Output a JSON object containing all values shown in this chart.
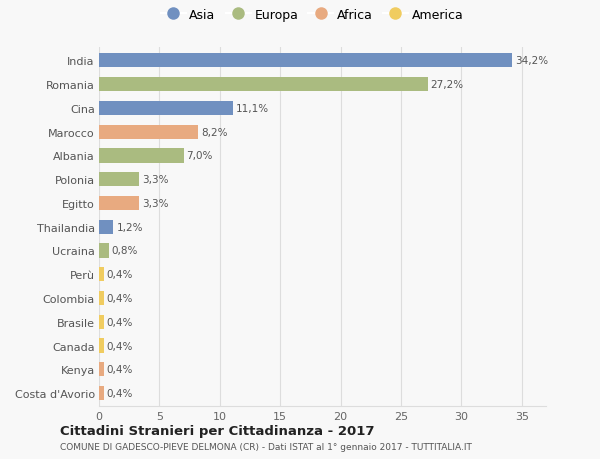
{
  "countries": [
    "India",
    "Romania",
    "Cina",
    "Marocco",
    "Albania",
    "Polonia",
    "Egitto",
    "Thailandia",
    "Ucraina",
    "Perù",
    "Colombia",
    "Brasile",
    "Canada",
    "Kenya",
    "Costa d'Avorio"
  ],
  "values": [
    34.2,
    27.2,
    11.1,
    8.2,
    7.0,
    3.3,
    3.3,
    1.2,
    0.8,
    0.4,
    0.4,
    0.4,
    0.4,
    0.4,
    0.4
  ],
  "labels": [
    "34,2%",
    "27,2%",
    "11,1%",
    "8,2%",
    "7,0%",
    "3,3%",
    "3,3%",
    "1,2%",
    "0,8%",
    "0,4%",
    "0,4%",
    "0,4%",
    "0,4%",
    "0,4%",
    "0,4%"
  ],
  "continents": [
    "Asia",
    "Europa",
    "Asia",
    "Africa",
    "Europa",
    "Europa",
    "Africa",
    "Asia",
    "Europa",
    "America",
    "America",
    "America",
    "America",
    "Africa",
    "Africa"
  ],
  "continent_colors": {
    "Asia": "#7090c0",
    "Europa": "#aabb80",
    "Africa": "#e8aa80",
    "America": "#f0cc60"
  },
  "legend_order": [
    "Asia",
    "Europa",
    "Africa",
    "America"
  ],
  "title": "Cittadini Stranieri per Cittadinanza - 2017",
  "subtitle": "COMUNE DI GADESCO-PIEVE DELMONA (CR) - Dati ISTAT al 1° gennaio 2017 - TUTTITALIA.IT",
  "xlim": [
    0,
    37
  ],
  "bg_color": "#f8f8f8",
  "grid_color": "#dddddd",
  "bar_height": 0.6
}
